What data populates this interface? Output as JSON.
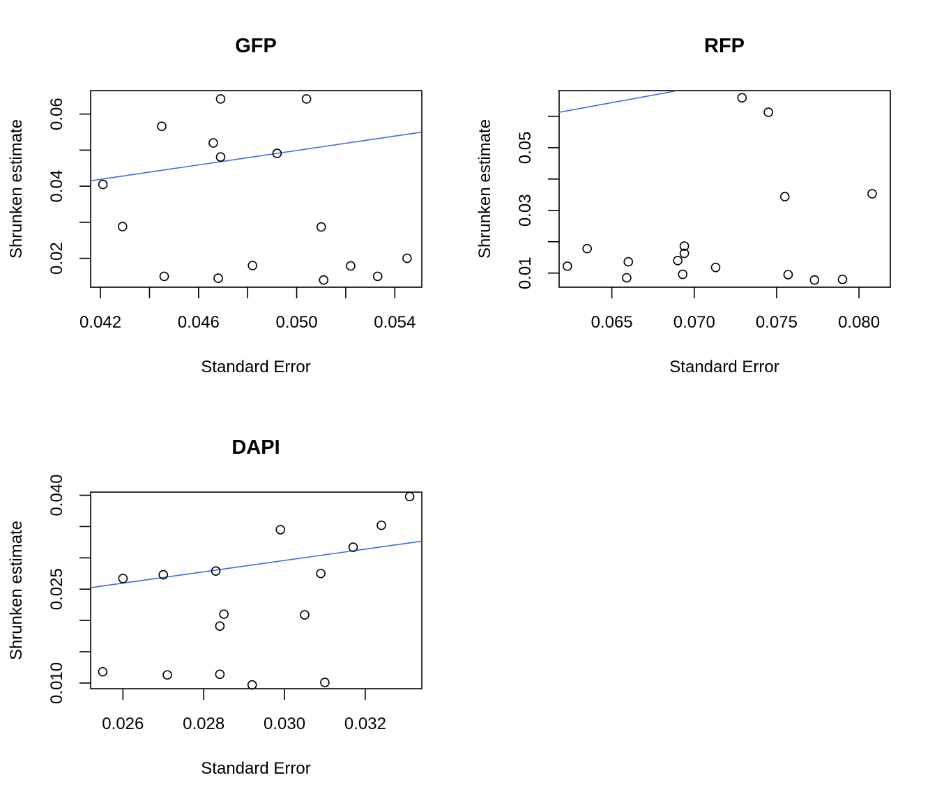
{
  "chart_data": [
    {
      "type": "scatter",
      "title": "GFP",
      "xlabel": "Standard Error",
      "ylabel": "Shrunken estimate",
      "xlim": [
        0.0416,
        0.0551
      ],
      "ylim": [
        0.012,
        0.0665
      ],
      "xticks": [
        0.042,
        0.044,
        0.046,
        0.048,
        0.05,
        0.052,
        0.054
      ],
      "xtick_labels": [
        "0.042",
        "",
        "0.046",
        "",
        "0.050",
        "",
        "0.054"
      ],
      "yticks": [
        0.02,
        0.03,
        0.04,
        0.05,
        0.06
      ],
      "ytick_labels": [
        "0.02",
        "",
        "0.04",
        "",
        "0.06"
      ],
      "line_color": "#4169E1",
      "fit_line": {
        "x": [
          0.0416,
          0.0551
        ],
        "y": [
          0.0415,
          0.055
        ]
      },
      "points": {
        "x": [
          0.0421,
          0.0429,
          0.0445,
          0.0446,
          0.0466,
          0.0468,
          0.0469,
          0.0469,
          0.0482,
          0.0492,
          0.0504,
          0.051,
          0.0511,
          0.0522,
          0.0533,
          0.0545
        ],
        "y": [
          0.0405,
          0.0288,
          0.0566,
          0.015,
          0.052,
          0.0145,
          0.0642,
          0.0481,
          0.018,
          0.0491,
          0.0642,
          0.0287,
          0.014,
          0.0179,
          0.015,
          0.02
        ]
      },
      "grid": false,
      "legend": "none"
    },
    {
      "type": "scatter",
      "title": "RFP",
      "xlabel": "Standard Error",
      "ylabel": "Shrunken estimate",
      "xlim": [
        0.0618,
        0.0819
      ],
      "ylim": [
        0.0055,
        0.0682
      ],
      "xticks": [
        0.065,
        0.07,
        0.075,
        0.08
      ],
      "xtick_labels": [
        "0.065",
        "0.070",
        "0.075",
        "0.080"
      ],
      "yticks": [
        0.01,
        0.02,
        0.03,
        0.04,
        0.05,
        0.06
      ],
      "ytick_labels": [
        "0.01",
        "",
        "0.03",
        "",
        "0.05",
        ""
      ],
      "line_color": "#4169E1",
      "fit_line": {
        "x": [
          0.0618,
          0.069
        ],
        "y": [
          0.0613,
          0.0682
        ]
      },
      "points": {
        "x": [
          0.0623,
          0.0635,
          0.0659,
          0.066,
          0.069,
          0.0693,
          0.0694,
          0.0694,
          0.0713,
          0.0729,
          0.0745,
          0.0755,
          0.0757,
          0.0773,
          0.079,
          0.0808
        ],
        "y": [
          0.0122,
          0.0178,
          0.0085,
          0.0136,
          0.014,
          0.0096,
          0.0186,
          0.0163,
          0.0118,
          0.0659,
          0.0613,
          0.0344,
          0.0095,
          0.0078,
          0.008,
          0.0353
        ]
      },
      "grid": false,
      "legend": "none"
    },
    {
      "type": "scatter",
      "title": "DAPI",
      "xlabel": "Standard Error",
      "ylabel": "Shrunken estimate",
      "xlim": [
        0.0252,
        0.0334
      ],
      "ylim": [
        0.0091,
        0.0405
      ],
      "xticks": [
        0.026,
        0.028,
        0.03,
        0.032
      ],
      "xtick_labels": [
        "0.026",
        "0.028",
        "0.030",
        "0.032"
      ],
      "yticks": [
        0.01,
        0.015,
        0.02,
        0.025,
        0.03,
        0.035,
        0.04
      ],
      "ytick_labels": [
        "0.010",
        "",
        "",
        "0.025",
        "",
        "",
        "0.040"
      ],
      "line_color": "#4169E1",
      "fit_line": {
        "x": [
          0.0252,
          0.0334
        ],
        "y": [
          0.02524,
          0.03266
        ]
      },
      "points": {
        "x": [
          0.0255,
          0.026,
          0.027,
          0.0271,
          0.0283,
          0.0284,
          0.0284,
          0.0285,
          0.0292,
          0.0299,
          0.0305,
          0.0309,
          0.031,
          0.0317,
          0.0324,
          0.0331
        ],
        "y": [
          0.0118,
          0.0267,
          0.0273,
          0.0113,
          0.0279,
          0.0114,
          0.0191,
          0.021,
          0.0097,
          0.0345,
          0.0209,
          0.0275,
          0.0101,
          0.0317,
          0.0352,
          0.0398
        ]
      },
      "grid": false,
      "legend": "none"
    }
  ]
}
